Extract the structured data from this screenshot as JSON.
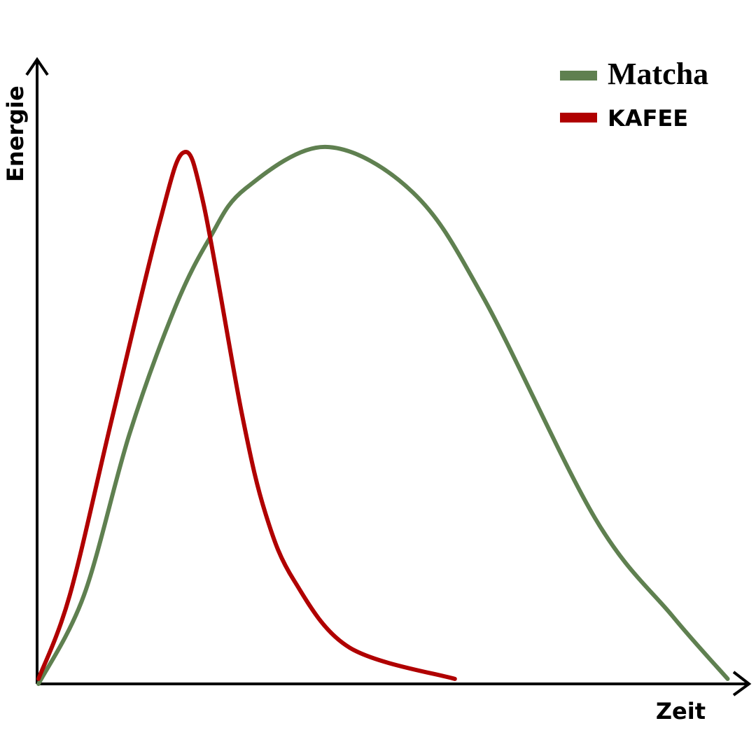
{
  "chart_data": {
    "type": "line",
    "x_label": "Zeit",
    "y_label": "Energie",
    "xlim": [
      0,
      100
    ],
    "ylim": [
      0,
      100
    ],
    "series": [
      {
        "name": "Matcha",
        "color": "#5f8050",
        "x": [
          0,
          6.4,
          12.8,
          19.2,
          24.1,
          29.1,
          40.4,
          52.7,
          62.6,
          78.3,
          89.2,
          97.0
        ],
        "values": [
          0,
          14.2,
          40.0,
          60.2,
          71.4,
          79.3,
          86.0,
          78.7,
          61.9,
          26.6,
          10.9,
          0.8
        ]
      },
      {
        "name": "KAFEE",
        "color": "#b00000",
        "x": [
          0,
          4.4,
          10.3,
          17.0,
          20.4,
          23.2,
          28.6,
          32.0,
          36.0,
          43.8,
          58.6
        ],
        "values": [
          0.8,
          14.2,
          42.3,
          73.7,
          85.1,
          77.0,
          43.4,
          27.1,
          16.5,
          5.8,
          0.8
        ]
      }
    ]
  }
}
